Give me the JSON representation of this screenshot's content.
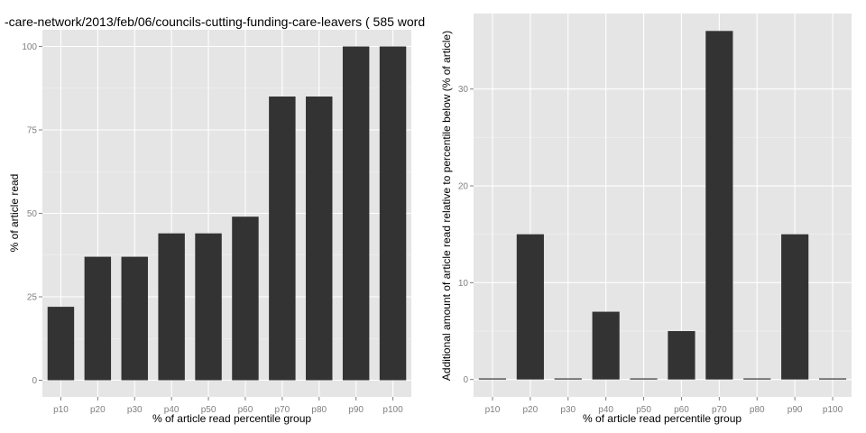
{
  "title": "-care-network/2013/feb/06/councils-cutting-funding-care-leavers ( 585 word",
  "colors": {
    "panel_background": "#e5e5e5",
    "gridline": "#ffffff",
    "bar": "#333333",
    "tick_text": "#7f7f7f"
  },
  "chart_data": [
    {
      "type": "bar",
      "categories": [
        "p10",
        "p20",
        "p30",
        "p40",
        "p50",
        "p60",
        "p70",
        "p80",
        "p90",
        "p100"
      ],
      "values": [
        22,
        37,
        37,
        44,
        44,
        49,
        85,
        85,
        100,
        100
      ],
      "xlabel": "% of article read percentile group",
      "ylabel": "% of article read",
      "ylim": [
        -5,
        105
      ],
      "yticks": [
        0,
        25,
        50,
        75,
        100
      ],
      "grid": true
    },
    {
      "type": "bar",
      "categories": [
        "p10",
        "p20",
        "p30",
        "p40",
        "p50",
        "p60",
        "p70",
        "p80",
        "p90",
        "p100"
      ],
      "values": [
        0,
        15,
        0,
        7,
        0,
        5,
        36,
        0,
        15,
        0
      ],
      "xlabel": "% of article read percentile group",
      "ylabel": "Additional amount of article read relative to percentile below (% of article)",
      "ylim": [
        -1.8,
        37.8
      ],
      "yticks": [
        0,
        10,
        20,
        30
      ],
      "grid": true
    }
  ]
}
